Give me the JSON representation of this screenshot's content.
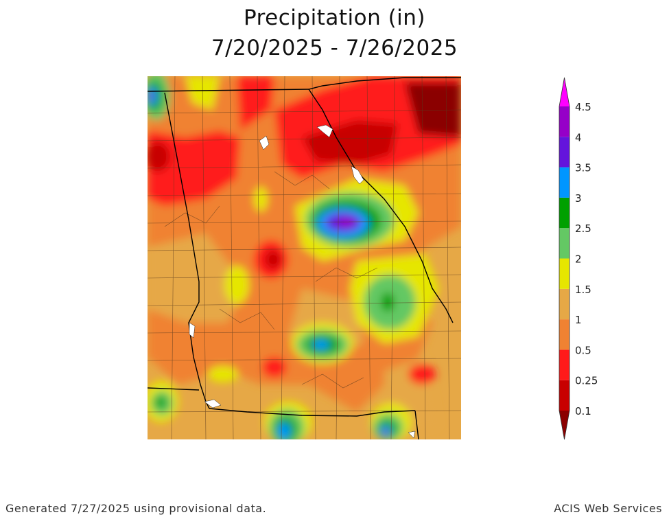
{
  "title_line1": "Precipitation (in)",
  "title_line2": "7/20/2025 - 7/26/2025",
  "footer_left": "Generated 7/27/2025  using provisional data.",
  "footer_right": "ACIS Web Services",
  "legend": {
    "bins": [
      {
        "label": "0.1",
        "color": "#8b0000"
      },
      {
        "label": "0.25",
        "color": "#c80000"
      },
      {
        "label": "0.5",
        "color": "#ff1a1a"
      },
      {
        "label": "1",
        "color": "#f08232"
      },
      {
        "label": "1.5",
        "color": "#e6a846"
      },
      {
        "label": "2",
        "color": "#e6e600"
      },
      {
        "label": "2.5",
        "color": "#64c864"
      },
      {
        "label": "3",
        "color": "#00a000"
      },
      {
        "label": "3.5",
        "color": "#0096ff"
      },
      {
        "label": "4",
        "color": "#6414dc"
      },
      {
        "label": "4.5",
        "color": "#9600c8"
      }
    ],
    "top_color": "#ff00ff"
  },
  "map": {
    "background_color": "#e6a846",
    "boundary_color": "#000000",
    "county_line_color": "#5a3a1e"
  }
}
